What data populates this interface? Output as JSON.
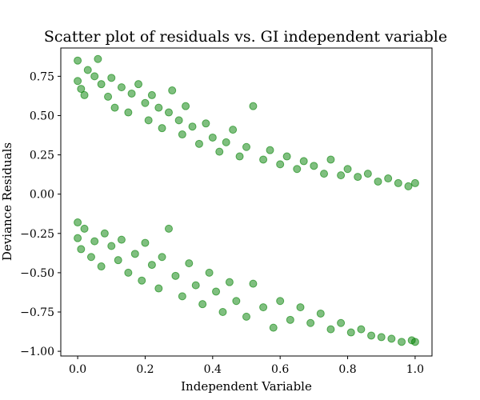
{
  "chart_data": {
    "type": "scatter",
    "title": "Scatter plot of residuals vs. GI independent variable",
    "xlabel": "Independent Variable",
    "ylabel": "Deviance Residuals",
    "xlim": [
      -0.05,
      1.05
    ],
    "ylim": [
      -1.03,
      0.93
    ],
    "xticks": [
      0.0,
      0.2,
      0.4,
      0.6,
      0.8,
      1.0
    ],
    "xtick_labels": [
      "0.0",
      "0.2",
      "0.4",
      "0.6",
      "0.8",
      "1.0"
    ],
    "yticks": [
      -1.0,
      -0.75,
      -0.5,
      -0.25,
      0.0,
      0.25,
      0.5,
      0.75
    ],
    "ytick_labels": [
      "−1.00",
      "−0.75",
      "−0.50",
      "−0.25",
      "0.00",
      "0.25",
      "0.50",
      "0.75"
    ],
    "grid": false,
    "marker_color": "#008000",
    "marker_alpha": 0.5,
    "series": [
      {
        "values": [
          [
            0.0,
            0.85
          ],
          [
            0.0,
            0.72
          ],
          [
            0.01,
            0.67
          ],
          [
            0.02,
            0.63
          ],
          [
            0.03,
            0.79
          ],
          [
            0.05,
            0.75
          ],
          [
            0.06,
            0.86
          ],
          [
            0.07,
            0.7
          ],
          [
            0.09,
            0.62
          ],
          [
            0.1,
            0.74
          ],
          [
            0.11,
            0.55
          ],
          [
            0.13,
            0.68
          ],
          [
            0.15,
            0.52
          ],
          [
            0.16,
            0.64
          ],
          [
            0.18,
            0.7
          ],
          [
            0.2,
            0.58
          ],
          [
            0.21,
            0.47
          ],
          [
            0.22,
            0.63
          ],
          [
            0.24,
            0.55
          ],
          [
            0.25,
            0.42
          ],
          [
            0.27,
            0.52
          ],
          [
            0.28,
            0.66
          ],
          [
            0.3,
            0.47
          ],
          [
            0.31,
            0.38
          ],
          [
            0.32,
            0.56
          ],
          [
            0.34,
            0.43
          ],
          [
            0.36,
            0.32
          ],
          [
            0.38,
            0.45
          ],
          [
            0.4,
            0.36
          ],
          [
            0.42,
            0.27
          ],
          [
            0.44,
            0.33
          ],
          [
            0.46,
            0.41
          ],
          [
            0.48,
            0.24
          ],
          [
            0.5,
            0.3
          ],
          [
            0.52,
            0.56
          ],
          [
            0.55,
            0.22
          ],
          [
            0.57,
            0.28
          ],
          [
            0.6,
            0.19
          ],
          [
            0.62,
            0.24
          ],
          [
            0.65,
            0.16
          ],
          [
            0.67,
            0.21
          ],
          [
            0.7,
            0.18
          ],
          [
            0.73,
            0.13
          ],
          [
            0.75,
            0.22
          ],
          [
            0.78,
            0.12
          ],
          [
            0.8,
            0.16
          ],
          [
            0.83,
            0.11
          ],
          [
            0.86,
            0.13
          ],
          [
            0.89,
            0.08
          ],
          [
            0.92,
            0.1
          ],
          [
            0.95,
            0.07
          ],
          [
            0.98,
            0.05
          ],
          [
            1.0,
            0.07
          ],
          [
            0.0,
            -0.18
          ],
          [
            0.0,
            -0.28
          ],
          [
            0.01,
            -0.35
          ],
          [
            0.02,
            -0.22
          ],
          [
            0.04,
            -0.4
          ],
          [
            0.05,
            -0.3
          ],
          [
            0.07,
            -0.46
          ],
          [
            0.08,
            -0.25
          ],
          [
            0.1,
            -0.33
          ],
          [
            0.12,
            -0.42
          ],
          [
            0.13,
            -0.29
          ],
          [
            0.15,
            -0.5
          ],
          [
            0.17,
            -0.38
          ],
          [
            0.19,
            -0.55
          ],
          [
            0.2,
            -0.31
          ],
          [
            0.22,
            -0.45
          ],
          [
            0.24,
            -0.6
          ],
          [
            0.25,
            -0.4
          ],
          [
            0.27,
            -0.22
          ],
          [
            0.29,
            -0.52
          ],
          [
            0.31,
            -0.65
          ],
          [
            0.33,
            -0.44
          ],
          [
            0.35,
            -0.58
          ],
          [
            0.37,
            -0.7
          ],
          [
            0.39,
            -0.5
          ],
          [
            0.41,
            -0.62
          ],
          [
            0.43,
            -0.75
          ],
          [
            0.45,
            -0.56
          ],
          [
            0.47,
            -0.68
          ],
          [
            0.5,
            -0.78
          ],
          [
            0.52,
            -0.57
          ],
          [
            0.55,
            -0.72
          ],
          [
            0.58,
            -0.85
          ],
          [
            0.6,
            -0.68
          ],
          [
            0.63,
            -0.8
          ],
          [
            0.66,
            -0.72
          ],
          [
            0.69,
            -0.82
          ],
          [
            0.72,
            -0.76
          ],
          [
            0.75,
            -0.86
          ],
          [
            0.78,
            -0.82
          ],
          [
            0.81,
            -0.88
          ],
          [
            0.84,
            -0.86
          ],
          [
            0.87,
            -0.9
          ],
          [
            0.9,
            -0.91
          ],
          [
            0.93,
            -0.92
          ],
          [
            0.96,
            -0.94
          ],
          [
            0.99,
            -0.93
          ],
          [
            1.0,
            -0.94
          ]
        ]
      }
    ]
  }
}
